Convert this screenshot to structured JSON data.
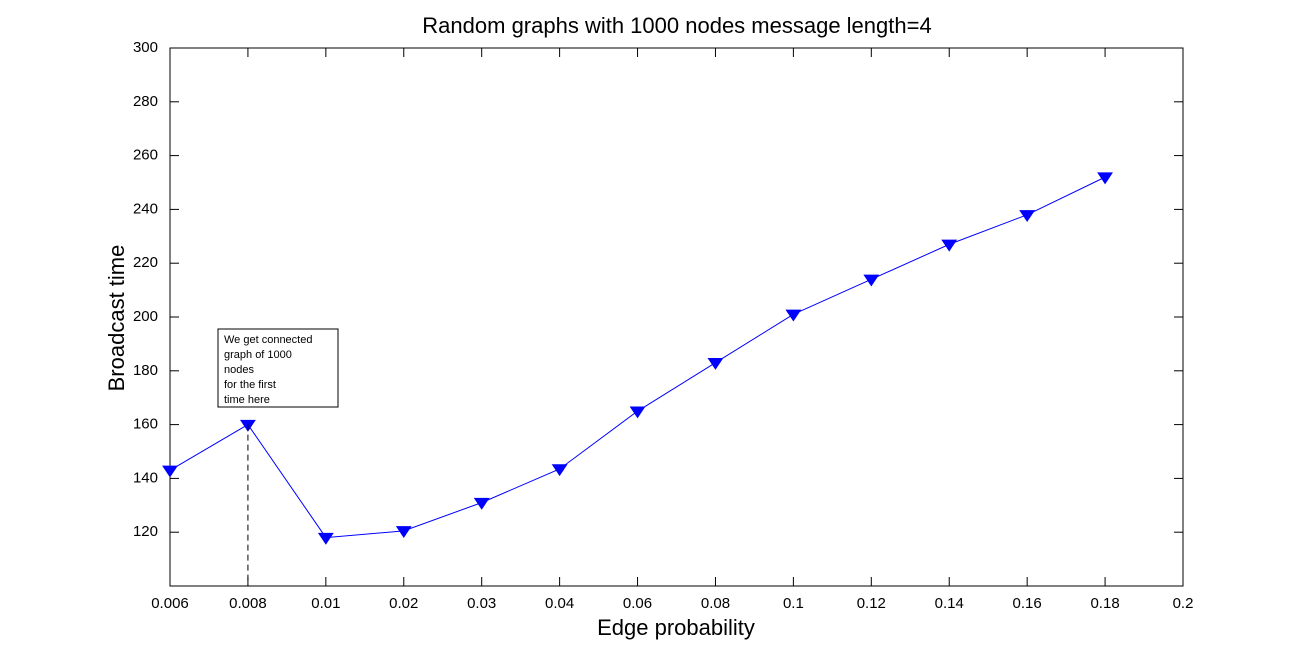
{
  "chart_data": {
    "type": "line",
    "title": "Random graphs with 1000 nodes message length=4",
    "x_label": "Edge probability",
    "y_label": "Broadcast time",
    "categories": [
      "0.006",
      "0.008",
      "0.01",
      "0.02",
      "0.03",
      "0.04",
      "0.06",
      "0.08",
      "0.1",
      "0.12",
      "0.14",
      "0.16",
      "0.18",
      "0.2"
    ],
    "series": [
      {
        "color": "#0000ff",
        "values": [
          143,
          160,
          118,
          120.5,
          131,
          143.5,
          165,
          183,
          201,
          214,
          227,
          238,
          252,
          null
        ]
      }
    ],
    "ylim": [
      100,
      300
    ],
    "yticks": [
      120,
      140,
      160,
      180,
      200,
      220,
      240,
      260,
      280,
      300
    ],
    "annotation": {
      "category_index": 1,
      "lines": [
        "We get connected",
        "graph of 1000",
        "nodes",
        "for the first",
        "time here"
      ]
    }
  }
}
